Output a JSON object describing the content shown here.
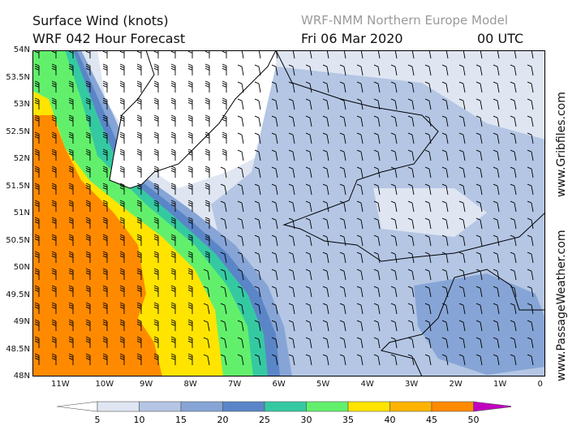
{
  "header": {
    "title_line1": "Surface Wind (knots)",
    "title_line2": "WRF 042 Hour Forecast",
    "model": "WRF-NMM Northern Europe Model",
    "date": "Fri 06 Mar 2020",
    "time": "00 UTC"
  },
  "map": {
    "lat_labels": [
      "54N",
      "53.5N",
      "53N",
      "52.5N",
      "52N",
      "51.5N",
      "51N",
      "50.5N",
      "50N",
      "49.5N",
      "49N",
      "48.5N",
      "48N"
    ],
    "lon_labels": [
      "11W",
      "10W",
      "9W",
      "8W",
      "7W",
      "6W",
      "5W",
      "4W",
      "3W",
      "2W",
      "1W",
      "0"
    ],
    "land_outline_color": "#000000",
    "barb_color": "#000000"
  },
  "legend": {
    "ticks": [
      "5",
      "10",
      "15",
      "20",
      "25",
      "30",
      "35",
      "40",
      "45",
      "50"
    ],
    "colors": [
      "#ffffff",
      "#dfe6f2",
      "#b4c6e4",
      "#86a5d6",
      "#5a86c8",
      "#35c9a2",
      "#62f06c",
      "#ffe400",
      "#ffb300",
      "#ff8a00",
      "#f43232",
      "#c00000",
      "#c000c0"
    ]
  },
  "side_text": {
    "left": "www.PassageWeather.com",
    "right": "www.Gribfiles.com"
  }
}
